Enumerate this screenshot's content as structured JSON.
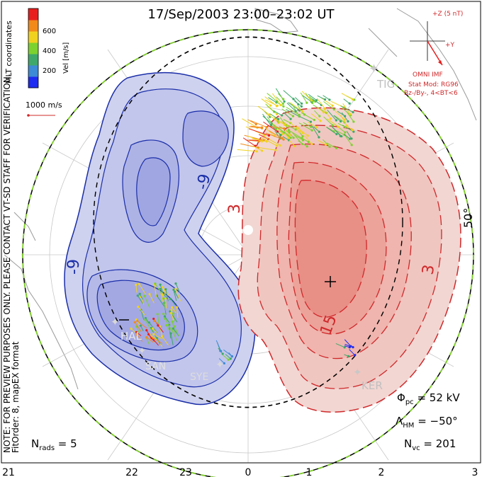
{
  "title": "17/Sep/2003 23:00–23:02 UT",
  "side_note_1": "NOTE: FOR PREVIEW PURPOSES ONLY. PLEASE CONTACT VT-SD STAFF FOR VERIFICATION.",
  "side_note_2": "FitOrder: 8, mapEX format",
  "colorbar": {
    "label": "Vel [m/s]",
    "ticks": [
      "200",
      "400",
      "600"
    ],
    "colors": [
      "#1e2bf0",
      "#3d8ad6",
      "#3ea86a",
      "#7cd22e",
      "#f0d21e",
      "#f28a1a",
      "#e81e1e"
    ]
  },
  "mlt_label": "MLT coordinates",
  "vector_scale": "1000 m/s",
  "imf": {
    "z_label": "+Z (5 nT)",
    "y_label": "+Y",
    "source": "OMNI IMF",
    "model": "Stat Mod: RG96",
    "model_cond": "Bz-/By-, 4<BT<6"
  },
  "stations": [
    {
      "name": "TIG"
    },
    {
      "name": "HAL"
    },
    {
      "name": "SAN"
    },
    {
      "name": "SYE"
    },
    {
      "name": "KER"
    }
  ],
  "contour_labels": {
    "neg1": "-9",
    "neg2": "-9",
    "pos1": "3",
    "pos2": "15",
    "pos3": "3",
    "lat": "50°"
  },
  "stats": {
    "phi_pc": "52 kV",
    "lambda_hm": "−50°",
    "n_vc": "201",
    "n_rads": "5"
  },
  "mlt_axis": [
    "21",
    "22",
    "23",
    "0",
    "1",
    "2",
    "3"
  ],
  "colors": {
    "neg_cell": "#1a2ea8",
    "pos_cell": "#d0282a",
    "boundary_green": "#7fd02a",
    "grid": "#c8c8c8"
  }
}
